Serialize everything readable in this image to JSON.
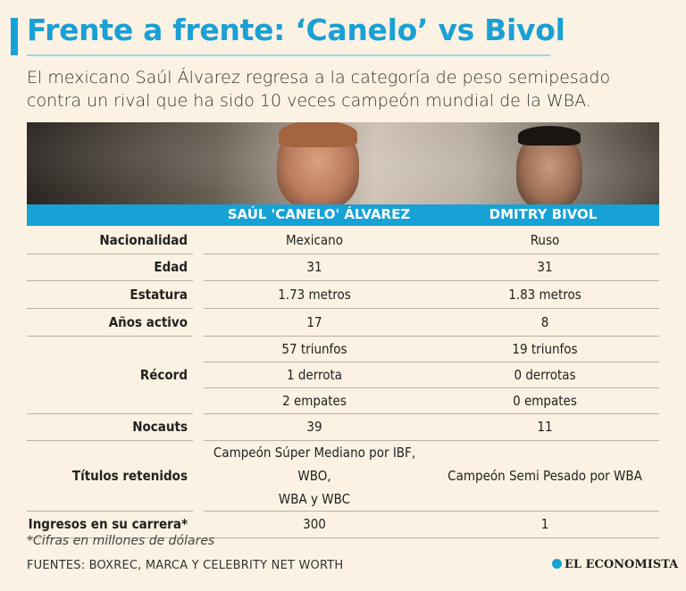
{
  "header": {
    "title": "Frente a frente: ‘Canelo’ vs Bivol",
    "subtitle": "El mexicano Saúl Álvarez regresa a la categoría de peso semipesado contra un rival que ha sido 10 veces campeón mundial de la WBA."
  },
  "columns": {
    "fighter1": "SAÚL 'CANELO' ÁLVAREZ",
    "fighter2": "DMITRY BIVOL"
  },
  "rows": {
    "nacionalidad": {
      "label": "Nacionalidad",
      "v1": "Mexicano",
      "v2": "Ruso"
    },
    "edad": {
      "label": "Edad",
      "v1": "31",
      "v2": "31"
    },
    "estatura": {
      "label": "Estatura",
      "v1": "1.73 metros",
      "v2": "1.83 metros"
    },
    "anos": {
      "label": "Años activo",
      "v1": "17",
      "v2": "8"
    },
    "record": {
      "label": "Récord",
      "v1": [
        "57 triunfos",
        "1 derrota",
        "2 empates"
      ],
      "v2": [
        "19 triunfos",
        "0 derrotas",
        "0 empates"
      ]
    },
    "nocauts": {
      "label": "Nocauts",
      "v1": "39",
      "v2": "11"
    },
    "titulos": {
      "label": "Títulos retenidos",
      "v1_line1": "Campeón Súper Mediano por IBF, WBO,",
      "v1_line2": "WBA y WBC",
      "v2": "Campeón Semi Pesado por WBA"
    },
    "ingresos": {
      "label": "Ingresos en su carrera*",
      "v1": "300",
      "v2": "1"
    }
  },
  "footer": {
    "note": "*Cifras en millones de dólares",
    "sources": "FUENTES: BOXREC, MARCA Y CELEBRITY NET WORTH",
    "logo": "EL ECONOMISTA"
  },
  "colors": {
    "accent": "#17a2d6",
    "background": "#fbf2e3"
  }
}
